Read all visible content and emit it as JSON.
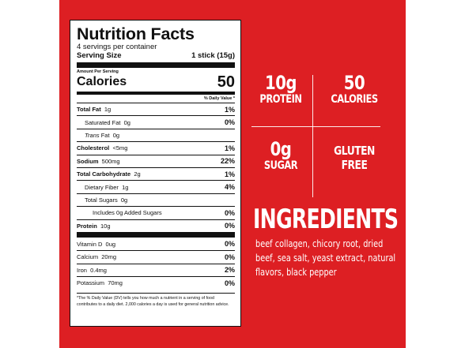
{
  "label": {
    "title": "Nutrition Facts",
    "servings": "4 servings per container",
    "serving_size_label": "Serving Size",
    "serving_size_value": "1 stick (15g)",
    "amount_per_serving": "Amount Per Serving",
    "calories_label": "Calories",
    "calories_value": "50",
    "dv_header": "% Daily Value *",
    "rows": [
      {
        "name": "Total Fat",
        "amount": "1g",
        "dv": "1%"
      },
      {
        "name": "Saturated Fat",
        "amount": "0g",
        "dv": "0%"
      },
      {
        "name": "Trans",
        "name2": "Fat",
        "amount": "0g",
        "dv": ""
      },
      {
        "name": "Cholesterol",
        "amount": "<5mg",
        "dv": "1%"
      },
      {
        "name": "Sodium",
        "amount": "500mg",
        "dv": "22%"
      },
      {
        "name": "Total Carbohydrate",
        "amount": "2g",
        "dv": "1%"
      },
      {
        "name": "Dietary Fiber",
        "amount": "1g",
        "dv": "4%"
      },
      {
        "name": "Total Sugars",
        "amount": "0g",
        "dv": ""
      },
      {
        "name": "Includes 0g Added Sugars",
        "amount": "",
        "dv": "0%"
      },
      {
        "name": "Protein",
        "amount": "10g",
        "dv": "0%"
      },
      {
        "name": "Vitamin D",
        "amount": "0ug",
        "dv": "0%"
      },
      {
        "name": "Calcium",
        "amount": "20mg",
        "dv": "0%"
      },
      {
        "name": "Iron",
        "amount": "0.4mg",
        "dv": "2%"
      },
      {
        "name": "Potassium",
        "amount": "70mg",
        "dv": "0%"
      }
    ],
    "footnote": "*The % Daily Value (DV) tells you how much a nutrient in a serving of food contributes to a daily diet. 2,000 calories a day is used for general nutrition advice."
  },
  "stats": {
    "protein_value": "10g",
    "protein_label": "PROTEIN",
    "calories_value": "50",
    "calories_label": "CALORIES",
    "sugar_value": "0g",
    "sugar_label": "SUGAR",
    "gluten_line1": "GLUTEN",
    "gluten_line2": "FREE"
  },
  "ingredients": {
    "title": "INGREDIENTS",
    "text": "beef collagen, chicory root, dried beef, sea salt, yeast extract, natural flavors, black pepper"
  },
  "colors": {
    "panel": "#dd1f23",
    "label_bg": "#ffffff",
    "text_dark": "#111111"
  }
}
